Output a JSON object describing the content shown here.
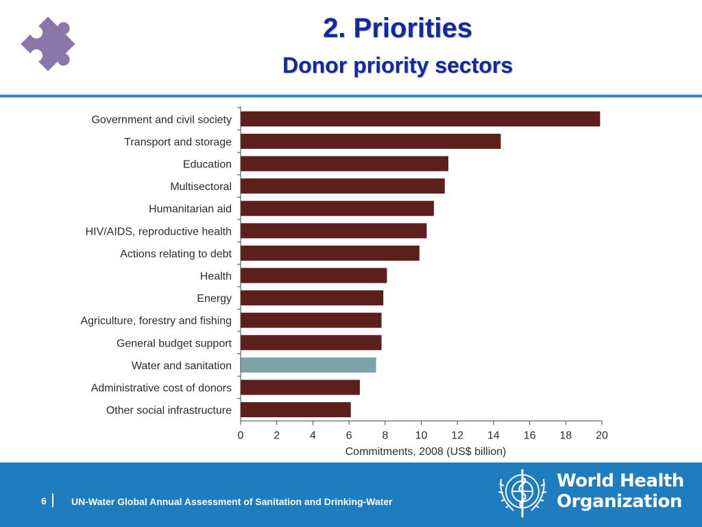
{
  "header": {
    "title": "2. Priorities",
    "subtitle": "Donor priority sectors",
    "icon": "puzzle-piece-icon",
    "icon_color": "#8a76a8",
    "title_color": "#1428a0",
    "rule_color": "#2a86c6"
  },
  "chart_data": {
    "type": "bar",
    "orientation": "horizontal",
    "categories": [
      "Government and civil society",
      "Transport and storage",
      "Education",
      "Multisectoral",
      "Humanitarian aid",
      "HIV/AIDS, reproductive health",
      "Actions relating to debt",
      "Health",
      "Energy",
      "Agriculture, forestry and fishing",
      "General budget support",
      "Water and sanitation",
      "Administrative cost of donors",
      "Other social infrastructure"
    ],
    "values": [
      19.9,
      14.4,
      11.5,
      11.3,
      10.7,
      10.3,
      9.9,
      8.1,
      7.9,
      7.8,
      7.8,
      7.5,
      6.6,
      6.1
    ],
    "highlight_category": "Water and sanitation",
    "bar_color": "#5c1f1c",
    "highlight_color": "#7da3a8",
    "xlabel": "Commitments,  2008 (US$ billion)",
    "ylabel": "",
    "xlim": [
      0,
      20
    ],
    "xticks": [
      "0",
      "2",
      "4",
      "6",
      "8",
      "10",
      "12",
      "14",
      "16",
      "18",
      "20"
    ],
    "grid": false
  },
  "footer": {
    "page_number": "6",
    "text": "UN-Water Global Annual Assessment of Sanitation and Drinking-Water",
    "background": "#1f7cbf"
  },
  "logo": {
    "icon": "who-emblem-icon",
    "line1": "World Health",
    "line2": "Organization"
  }
}
